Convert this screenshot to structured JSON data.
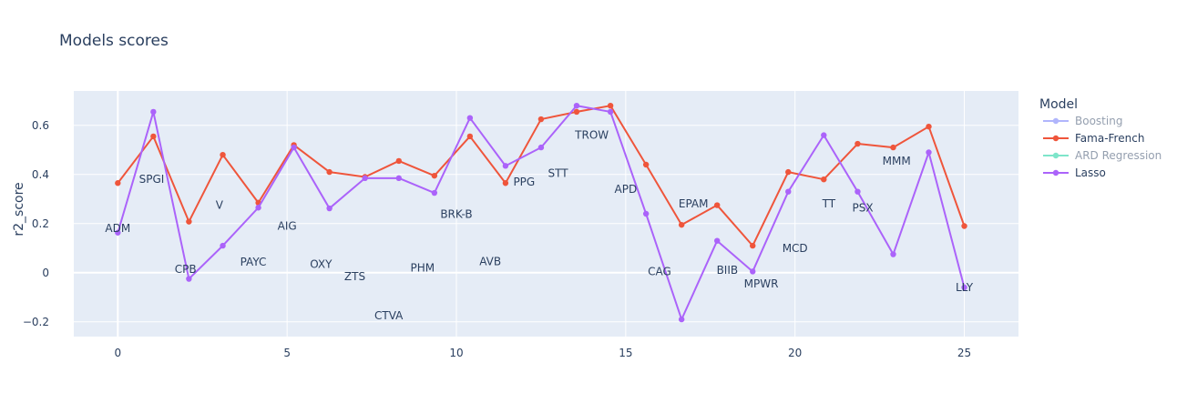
{
  "chart_data": {
    "type": "line",
    "title": "Models scores",
    "xlabel": "",
    "ylabel": "r2_score",
    "xlim": [
      -1.3,
      26.6
    ],
    "ylim": [
      -0.26,
      0.74
    ],
    "x_ticks": [
      0,
      5,
      10,
      15,
      20,
      25
    ],
    "y_ticks": [
      -0.2,
      0,
      0.2,
      0.4,
      0.6
    ],
    "y_tick_labels": [
      "−0.2",
      "0",
      "0.2",
      "0.4",
      "0.6"
    ],
    "grid": true,
    "legend": {
      "title": "Model",
      "placement": "right",
      "entries": [
        {
          "name": "Boosting",
          "color": "#636efa",
          "visible": false
        },
        {
          "name": "Fama-French",
          "color": "#ef553b",
          "visible": true
        },
        {
          "name": "ARD Regression",
          "color": "#00cc96",
          "visible": false
        },
        {
          "name": "Lasso",
          "color": "#ab63fa",
          "visible": true
        }
      ]
    },
    "series": [
      {
        "name": "Fama-French",
        "color": "#ef553b",
        "x": [
          0,
          1.05,
          2.1,
          3.1,
          4.15,
          5.2,
          6.25,
          7.3,
          8.3,
          9.35,
          10.4,
          11.45,
          12.5,
          13.55,
          14.55,
          15.6,
          16.65,
          17.7,
          18.75,
          19.8,
          20.85,
          21.85,
          22.9,
          23.95,
          25
        ],
        "y": [
          0.365,
          0.555,
          0.208,
          0.48,
          0.285,
          0.52,
          0.41,
          0.39,
          0.455,
          0.395,
          0.555,
          0.365,
          0.625,
          0.655,
          0.68,
          0.44,
          0.195,
          0.275,
          0.11,
          0.41,
          0.38,
          0.525,
          0.51,
          0.595,
          0.19
        ]
      },
      {
        "name": "Lasso",
        "color": "#ab63fa",
        "x": [
          0,
          1.05,
          2.1,
          3.1,
          4.15,
          5.2,
          6.25,
          7.3,
          8.3,
          9.35,
          10.4,
          11.45,
          12.5,
          13.55,
          14.55,
          15.6,
          16.65,
          17.7,
          18.75,
          19.8,
          20.85,
          21.85,
          22.9,
          23.95,
          25
        ],
        "y": [
          0.163,
          0.655,
          -0.025,
          0.11,
          0.265,
          0.51,
          0.262,
          0.385,
          0.385,
          0.325,
          0.63,
          0.435,
          0.51,
          0.68,
          0.655,
          0.24,
          -0.19,
          0.13,
          0.005,
          0.33,
          0.56,
          0.33,
          0.075,
          0.49,
          -0.06
        ]
      }
    ],
    "annotations": [
      {
        "text": "ADM",
        "x": 0,
        "y": 0.18
      },
      {
        "text": "SPGI",
        "x": 1,
        "y": 0.38
      },
      {
        "text": "CPB",
        "x": 2,
        "y": 0.015
      },
      {
        "text": "V",
        "x": 3,
        "y": 0.275
      },
      {
        "text": "PAYC",
        "x": 4,
        "y": 0.043
      },
      {
        "text": "AIG",
        "x": 5,
        "y": 0.19
      },
      {
        "text": "OXY",
        "x": 6,
        "y": 0.035
      },
      {
        "text": "ZTS",
        "x": 7,
        "y": -0.015
      },
      {
        "text": "CTVA",
        "x": 8,
        "y": -0.175
      },
      {
        "text": "PHM",
        "x": 9,
        "y": 0.02
      },
      {
        "text": "BRK-B",
        "x": 10,
        "y": 0.238
      },
      {
        "text": "AVB",
        "x": 11,
        "y": 0.045
      },
      {
        "text": "PPG",
        "x": 12,
        "y": 0.37
      },
      {
        "text": "STT",
        "x": 13,
        "y": 0.405
      },
      {
        "text": "TROW",
        "x": 14,
        "y": 0.56
      },
      {
        "text": "APD",
        "x": 15,
        "y": 0.34
      },
      {
        "text": "CAG",
        "x": 16,
        "y": 0.005
      },
      {
        "text": "EPAM",
        "x": 17,
        "y": 0.28
      },
      {
        "text": "BIIB",
        "x": 18,
        "y": 0.01
      },
      {
        "text": "MPWR",
        "x": 19,
        "y": -0.045
      },
      {
        "text": "MCD",
        "x": 20,
        "y": 0.1
      },
      {
        "text": "TT",
        "x": 21,
        "y": 0.28
      },
      {
        "text": "PSX",
        "x": 22,
        "y": 0.265
      },
      {
        "text": "MMM",
        "x": 23,
        "y": 0.455
      },
      {
        "text": "LLY",
        "x": 25,
        "y": -0.06
      }
    ]
  }
}
